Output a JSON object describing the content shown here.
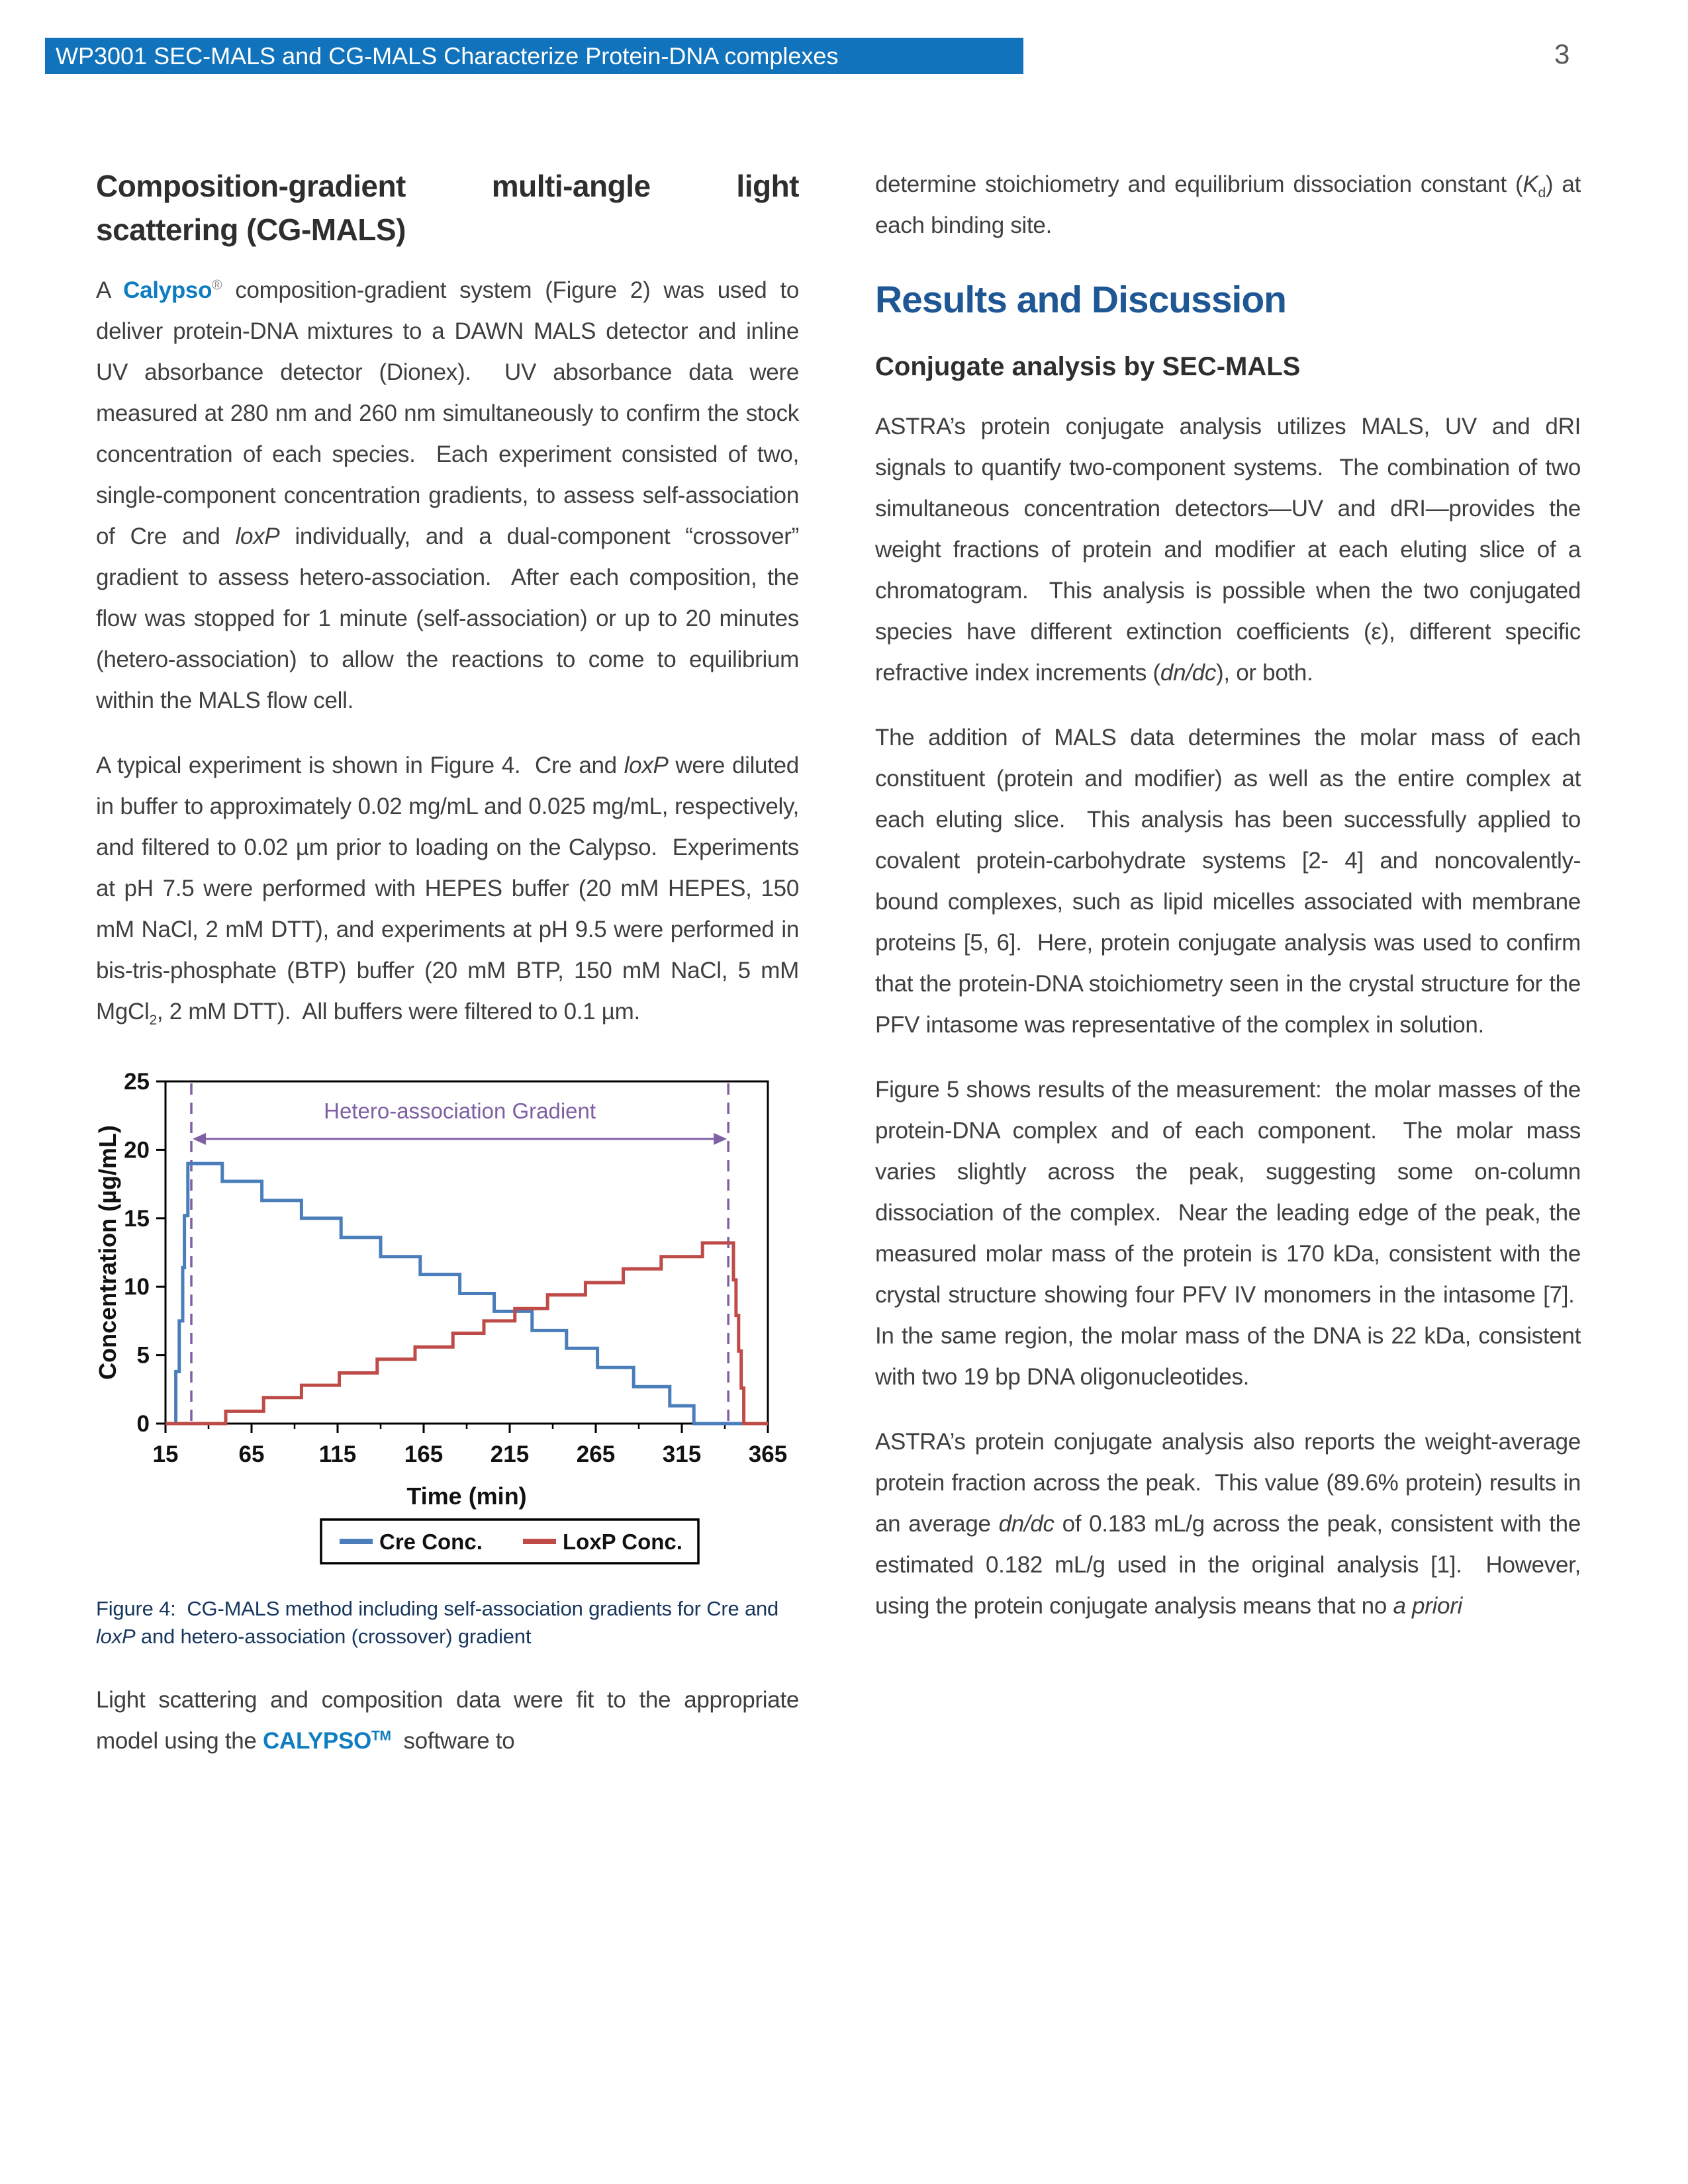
{
  "header": {
    "bar_text": "WP3001 SEC-MALS and CG-MALS Characterize Protein-DNA complexes",
    "page_number": "3"
  },
  "colors": {
    "header_bar": "#1173BB",
    "body_text": "#3f3f3f",
    "section_heading_blue": "#1F5795",
    "caption_navy": "#17375E",
    "link_blue": "#0E7DC1",
    "chart_blue": "#4A7EBB",
    "chart_red": "#BE4B48",
    "chart_purple": "#7E60A3"
  },
  "left_column": {
    "heading_line1_words": [
      "Composition-gradient",
      "multi-angle",
      "light"
    ],
    "heading_line2": "scattering (CG-MALS)",
    "para1_runs": [
      {
        "t": "A "
      },
      {
        "t": "Calypso",
        "b": true,
        "c": "#0E7DC1",
        "n": "calypso-link",
        "link": true
      },
      {
        "t": "®",
        "sup": true,
        "c": "#8C8C8C"
      },
      {
        "t": " composition-gradient system (Figure 2) was used to deliver protein-DNA mixtures to a DAWN MALS detector and inline UV absorbance detector (Dionex).  UV absorbance data were measured at 280 nm and 260 nm simultaneously to confirm the stock concentration of each species.  Each experiment consisted of two, single-component concentration gradients, to assess self-association of Cre and "
      },
      {
        "t": "loxP",
        "i": true
      },
      {
        "t": " individually, and a dual-component “crossover” gradient to assess hetero-association.  After each composition, the flow was stopped for 1 minute (self-association) or up to 20 minutes (hetero-association) to allow the reactions to come to equilibrium within the MALS flow cell."
      }
    ],
    "para2_runs": [
      {
        "t": "A typical experiment is shown in Figure 4.  Cre and "
      },
      {
        "t": "loxP",
        "i": true
      },
      {
        "t": " were diluted in buffer to approximately 0.02 mg/mL and 0.025 mg/mL, respectively, and filtered to 0.02 µm prior to loading on the Calypso.  Experiments at pH 7.5 were performed with HEPES buffer (20 mM HEPES, 150 mM NaCl, 2 mM DTT), and experiments at pH 9.5 were performed in bis-tris-phosphate (BTP) buffer (20 mM BTP, 150 mM NaCl, 5 mM MgCl"
      },
      {
        "t": "2",
        "sub": true
      },
      {
        "t": ", 2 mM DTT).  All buffers were filtered to 0.1 µm."
      }
    ],
    "figure_caption_runs": [
      {
        "t": "Figure 4:  CG-MALS method including self-association gradients for Cre and "
      },
      {
        "t": "loxP",
        "i": true
      },
      {
        "t": " and hetero-association (crossover) gradient"
      }
    ],
    "para3_runs": [
      {
        "t": "Light scattering and composition data were fit to the appropriate model using the "
      },
      {
        "t": "CALYPSO",
        "b": true,
        "c": "#0E7DC1",
        "n": "calypso-tm-link",
        "link": true
      },
      {
        "t": "TM",
        "sup": true,
        "b": true,
        "c": "#0E7DC1"
      },
      {
        "t": "  software to"
      }
    ]
  },
  "right_column": {
    "para0_runs": [
      {
        "t": "determine stoichiometry and equilibrium dissociation constant ("
      },
      {
        "t": "K",
        "i": true
      },
      {
        "t": "d",
        "sub": true
      },
      {
        "t": ") at each binding site."
      }
    ],
    "section_heading": "Results and Discussion",
    "subsection_heading": "Conjugate analysis by SEC-MALS",
    "para1_runs": [
      {
        "t": "ASTRA’s protein conjugate analysis utilizes MALS, UV and dRI signals to quantify two-component systems.  The combination of two simultaneous concentration detectors—UV and dRI—provides the weight fractions of protein and modifier at each eluting slice of a chromatogram.  This analysis is possible when the two conjugated species have different extinction coefficients (ε), different specific refractive index increments ("
      },
      {
        "t": "dn/dc",
        "i": true
      },
      {
        "t": "), or both."
      }
    ],
    "para2_runs": [
      {
        "t": "The addition of MALS data determines the molar mass of each constituent (protein and modifier) as well as the entire complex at each eluting slice.  This analysis has been successfully applied to covalent protein-carbohydrate systems [2- 4] and noncovalently-bound complexes, such as lipid micelles associated with membrane proteins [5, 6].  Here, protein conjugate analysis was used to confirm that the protein-DNA stoichiometry seen in the crystal structure for the PFV intasome was representative of the complex in solution."
      }
    ],
    "para3_runs": [
      {
        "t": "Figure 5 shows results of the measurement:  the molar masses of the protein-DNA complex and of each component.  The molar mass varies slightly across the peak, suggesting some on-column dissociation of the complex.  Near the leading edge of the peak, the measured molar mass of the protein is 170 kDa, consistent with the crystal structure showing four PFV IV monomers in the intasome [7].  In the same region, the molar mass of the DNA is 22 kDa, consistent with two 19 bp DNA oligonucleotides."
      }
    ],
    "para4_runs": [
      {
        "t": "ASTRA’s protein conjugate analysis also reports the weight-average protein fraction across the peak.  This value (89.6% protein) results in an average "
      },
      {
        "t": "dn/dc",
        "i": true
      },
      {
        "t": " of 0.183 mL/g across the peak, consistent with the estimated 0.182 mL/g used in the original analysis [1].  However, using the protein conjugate analysis means that no "
      },
      {
        "t": "a priori",
        "i": true
      }
    ]
  },
  "chart_data": {
    "type": "line",
    "title": "",
    "xlabel": "Time (min)",
    "ylabel": "Concentration (µg/mL)",
    "xlim": [
      15,
      365
    ],
    "ylim": [
      0,
      25
    ],
    "xticks": [
      15,
      65,
      115,
      165,
      215,
      265,
      315,
      365
    ],
    "yticks": [
      0,
      5,
      10,
      15,
      20,
      25
    ],
    "grid": false,
    "legend_position": "bottom",
    "annotation": {
      "label": "Hetero-association Gradient",
      "x_start": 30,
      "x_end": 342,
      "arrow_y": 20.8,
      "label_y": 22.3,
      "color": "#7E60A3"
    },
    "series": [
      {
        "name": "Cre Conc.",
        "color": "#4A7EBB",
        "step": true,
        "x": [
          15,
          21,
          21,
          23,
          23,
          25,
          25,
          26,
          26,
          28,
          28,
          48,
          48,
          71,
          71,
          94,
          94,
          117,
          117,
          140,
          140,
          163,
          163,
          186,
          186,
          206,
          206,
          228,
          228,
          248,
          248,
          266,
          266,
          287,
          287,
          308,
          308,
          322,
          322,
          365
        ],
        "y": [
          0,
          0,
          3.8,
          3.8,
          7.5,
          7.5,
          11.4,
          11.4,
          15.2,
          15.2,
          19,
          19,
          17.7,
          17.7,
          16.3,
          16.3,
          15,
          15,
          13.6,
          13.6,
          12.2,
          12.2,
          10.9,
          10.9,
          9.5,
          9.5,
          8.2,
          8.2,
          6.8,
          6.8,
          5.5,
          5.5,
          4.1,
          4.1,
          2.7,
          2.7,
          1.3,
          1.3,
          0,
          0
        ]
      },
      {
        "name": "LoxP Conc.",
        "color": "#BE4B48",
        "step": true,
        "x": [
          15,
          50,
          50,
          72,
          72,
          94,
          94,
          116,
          116,
          138,
          138,
          160,
          160,
          182,
          182,
          200,
          200,
          218,
          218,
          237,
          237,
          259,
          259,
          281,
          281,
          303,
          303,
          327,
          327,
          345,
          345,
          346.5,
          346.5,
          348,
          348,
          349.5,
          349.5,
          351,
          351,
          365
        ],
        "y": [
          0,
          0,
          0.9,
          0.9,
          1.9,
          1.9,
          2.8,
          2.8,
          3.7,
          3.7,
          4.7,
          4.7,
          5.6,
          5.6,
          6.6,
          6.6,
          7.5,
          7.5,
          8.4,
          8.4,
          9.4,
          9.4,
          10.3,
          10.3,
          11.3,
          11.3,
          12.2,
          12.2,
          13.2,
          13.2,
          10.5,
          10.5,
          7.9,
          7.9,
          5.3,
          5.3,
          2.6,
          2.6,
          0,
          0
        ]
      }
    ]
  }
}
